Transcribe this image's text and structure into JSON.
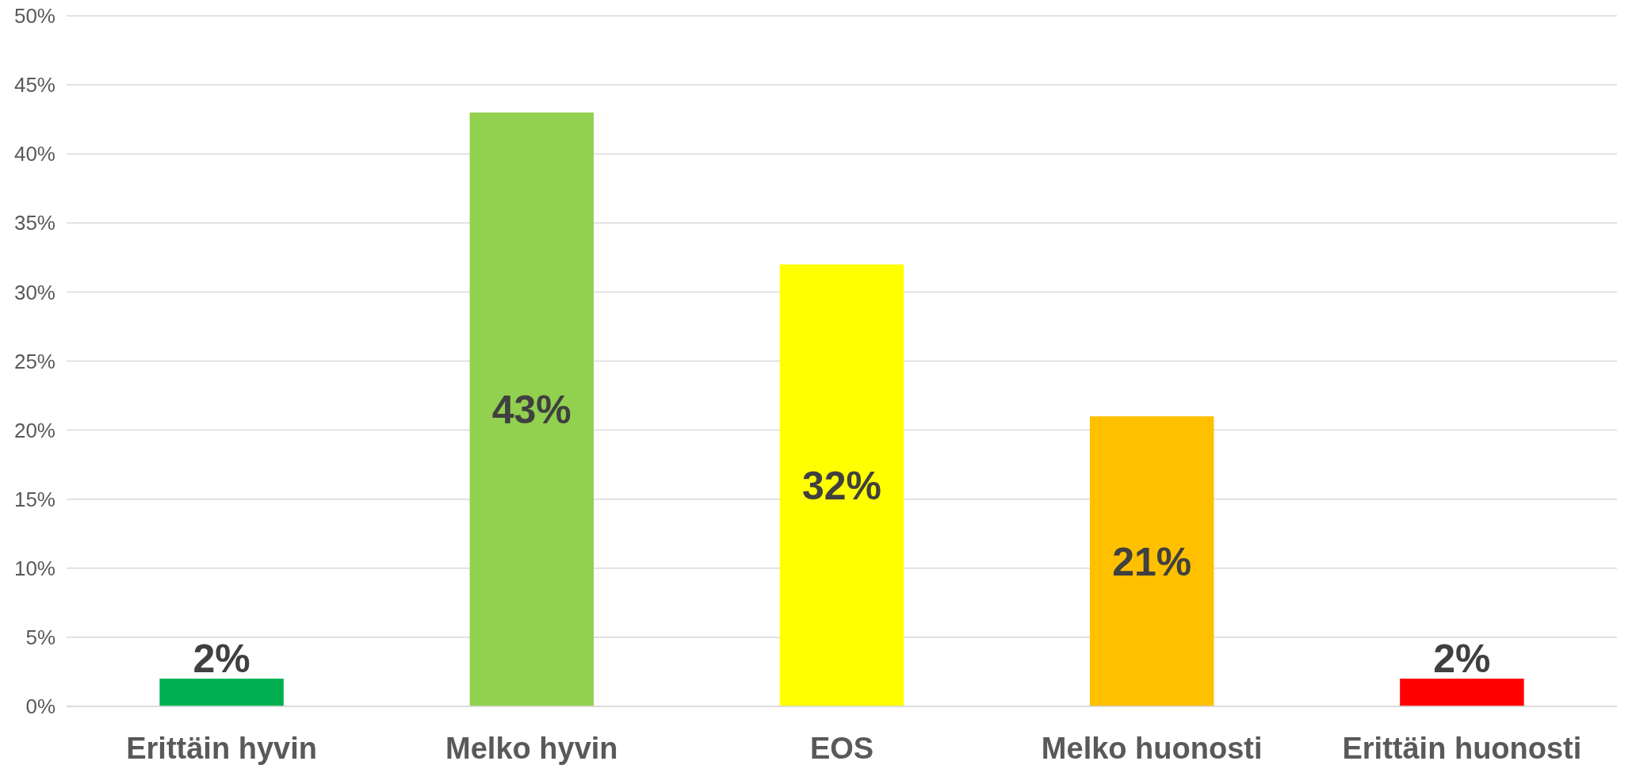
{
  "chart_data": {
    "type": "bar",
    "categories": [
      "Erittäin hyvin",
      "Melko hyvin",
      "EOS",
      "Melko huonosti",
      "Erittäin huonosti"
    ],
    "values": [
      2,
      43,
      32,
      21,
      2
    ],
    "colors": [
      "#00b050",
      "#92d050",
      "#ffff00",
      "#ffc000",
      "#ff0000"
    ],
    "value_labels": [
      "2%",
      "43%",
      "32%",
      "21%",
      "2%"
    ],
    "ylim": [
      0,
      50
    ],
    "yticks": [
      {
        "value": 0,
        "label": "0%"
      },
      {
        "value": 5,
        "label": "5%"
      },
      {
        "value": 10,
        "label": "10%"
      },
      {
        "value": 15,
        "label": "15%"
      },
      {
        "value": 20,
        "label": "20%"
      },
      {
        "value": 25,
        "label": "25%"
      },
      {
        "value": 30,
        "label": "30%"
      },
      {
        "value": 35,
        "label": "35%"
      },
      {
        "value": 40,
        "label": "40%"
      },
      {
        "value": 45,
        "label": "45%"
      },
      {
        "value": 50,
        "label": "50%"
      }
    ],
    "grid": "y"
  }
}
